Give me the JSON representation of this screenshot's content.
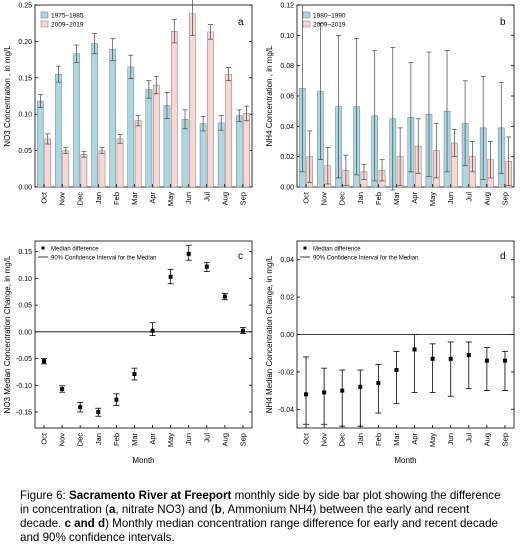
{
  "colors": {
    "early": "#a8d8e4",
    "recent": "#f9d6d3",
    "axis": "#000000",
    "edge": "#7a7a7a"
  },
  "chart_data": [
    {
      "id": "a",
      "type": "bar",
      "panel_label": "a",
      "ylabel": "NO3  Concentration , in mg/L",
      "xlabel": "",
      "categories": [
        "Oct",
        "Nov",
        "Dec",
        "Jan",
        "Feb",
        "Mar",
        "Apr",
        "May",
        "Jun",
        "Jul",
        "Aug",
        "Sep"
      ],
      "ylim": [
        0,
        0.25
      ],
      "yticks": [
        0.0,
        0.05,
        0.1,
        0.15,
        0.2,
        0.25
      ],
      "ytick_labels": [
        "0.00",
        "0.05",
        "0.10",
        "0.15",
        "0.20",
        "0.25"
      ],
      "legend": [
        "1975–1985",
        "2009–2019"
      ],
      "series": [
        {
          "name": "1975–1985",
          "values": [
            0.118,
            0.155,
            0.183,
            0.197,
            0.189,
            0.165,
            0.134,
            0.112,
            0.093,
            0.087,
            0.088,
            0.098
          ],
          "err": [
            0.009,
            0.011,
            0.012,
            0.014,
            0.015,
            0.016,
            0.012,
            0.018,
            0.013,
            0.01,
            0.01,
            0.008
          ]
        },
        {
          "name": "2009–2019",
          "values": [
            0.066,
            0.05,
            0.045,
            0.05,
            0.066,
            0.091,
            0.14,
            0.214,
            0.238,
            0.213,
            0.155,
            0.101
          ],
          "err": [
            0.007,
            0.004,
            0.004,
            0.004,
            0.006,
            0.007,
            0.012,
            0.016,
            0.03,
            0.01,
            0.009,
            0.01
          ]
        }
      ]
    },
    {
      "id": "b",
      "type": "bar",
      "panel_label": "b",
      "ylabel": "NH4  Concentration , in mg/L",
      "xlabel": "",
      "categories": [
        "Oct",
        "Nov",
        "Dec",
        "Jan",
        "Feb",
        "Mar",
        "Apr",
        "May",
        "Jun",
        "Jul",
        "Aug",
        "Sep"
      ],
      "ylim": [
        0,
        0.12
      ],
      "yticks": [
        0.0,
        0.02,
        0.04,
        0.06,
        0.08,
        0.1,
        0.12
      ],
      "ytick_labels": [
        "0.00",
        "0.02",
        "0.04",
        "0.06",
        "0.08",
        "0.10",
        "0.12"
      ],
      "legend": [
        "1980–1990",
        "2009–2019"
      ],
      "series": [
        {
          "name": "1980–1990",
          "values": [
            0.065,
            0.063,
            0.053,
            0.053,
            0.047,
            0.045,
            0.046,
            0.048,
            0.05,
            0.042,
            0.039,
            0.039
          ],
          "err": [
            0.055,
            0.045,
            0.047,
            0.045,
            0.043,
            0.047,
            0.036,
            0.041,
            0.04,
            0.028,
            0.034,
            0.03
          ]
        },
        {
          "name": "2009–2019",
          "values": [
            0.02,
            0.014,
            0.011,
            0.01,
            0.011,
            0.02,
            0.027,
            0.024,
            0.029,
            0.02,
            0.018,
            0.017
          ],
          "err": [
            0.017,
            0.012,
            0.01,
            0.005,
            0.007,
            0.019,
            0.018,
            0.018,
            0.009,
            0.01,
            0.012,
            0.016
          ]
        }
      ]
    },
    {
      "id": "c",
      "type": "scatter",
      "panel_label": "c",
      "ylabel": "NO3 Median Concentration Change, in mg/L",
      "xlabel": "Month",
      "categories": [
        "Oct",
        "Nov",
        "Dec",
        "Jan",
        "Feb",
        "Mar",
        "Apr",
        "May",
        "Jun",
        "Jul",
        "Aug",
        "Sep"
      ],
      "ylim": [
        -0.18,
        0.17
      ],
      "yticks": [
        -0.15,
        -0.1,
        -0.05,
        0.0,
        0.05,
        0.1,
        0.15
      ],
      "ytick_labels": [
        "-0.15",
        "-0.10",
        "-0.05",
        "0.00",
        "0.05",
        "0.10",
        "0.15"
      ],
      "legend": [
        "Median difference",
        "90% Confidence Interval for the Median"
      ],
      "series": [
        {
          "name": "Median difference",
          "values": [
            -0.055,
            -0.107,
            -0.141,
            -0.15,
            -0.127,
            -0.079,
            0.002,
            0.103,
            0.146,
            0.122,
            0.066,
            0.002
          ],
          "ci_low": [
            -0.06,
            -0.113,
            -0.15,
            -0.158,
            -0.138,
            -0.09,
            -0.007,
            0.09,
            0.134,
            0.113,
            0.06,
            -0.003
          ],
          "ci_high": [
            -0.05,
            -0.101,
            -0.132,
            -0.143,
            -0.116,
            -0.068,
            0.017,
            0.117,
            0.162,
            0.13,
            0.072,
            0.008
          ]
        }
      ]
    },
    {
      "id": "d",
      "type": "scatter",
      "panel_label": "d",
      "ylabel": "NH4 Median Concentration Change, in mg/L",
      "xlabel": "Month",
      "categories": [
        "Oct",
        "Nov",
        "Dec",
        "Jan",
        "Feb",
        "Mar",
        "Apr",
        "May",
        "Jun",
        "Jul",
        "Aug",
        "Sep"
      ],
      "ylim": [
        -0.05,
        0.05
      ],
      "yticks": [
        -0.04,
        -0.02,
        0.0,
        0.02,
        0.04
      ],
      "ytick_labels": [
        "-0.04",
        "-0.02",
        "0.00",
        "0.02",
        "0.04"
      ],
      "legend": [
        "Median difference",
        "90% Confidence Interval for the Median"
      ],
      "series": [
        {
          "name": "Median difference",
          "values": [
            -0.032,
            -0.031,
            -0.03,
            -0.028,
            -0.026,
            -0.019,
            -0.008,
            -0.013,
            -0.013,
            -0.011,
            -0.014,
            -0.014
          ],
          "ci_low": [
            -0.048,
            -0.048,
            -0.049,
            -0.049,
            -0.042,
            -0.037,
            -0.031,
            -0.031,
            -0.033,
            -0.029,
            -0.03,
            -0.03
          ],
          "ci_high": [
            -0.012,
            -0.018,
            -0.019,
            -0.019,
            -0.016,
            -0.009,
            0.0,
            -0.005,
            -0.004,
            -0.004,
            -0.007,
            -0.009
          ]
        }
      ]
    }
  ],
  "caption": {
    "prefix": "Figure 6: ",
    "site": "Sacramento River at Freeport",
    "t1": " monthly side by side bar plot showing the difference in concentration (",
    "a": "a",
    "t2": ", nitrate NO3) and (",
    "b": "b",
    "t3": ", Ammonium NH4) between the early and recent decade. ",
    "cd": "c and d",
    "t4": ") Monthly median concentration range difference for early and recent decade and 90% confidence intervals."
  }
}
